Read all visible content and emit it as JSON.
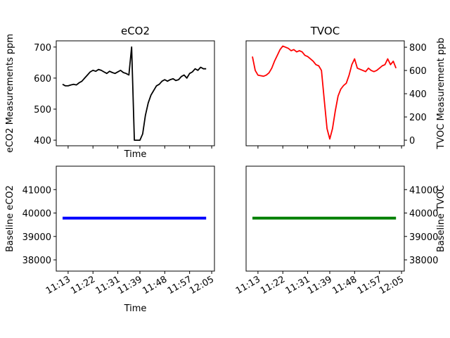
{
  "chart_data": [
    {
      "type": "line",
      "title": "eCO2",
      "x_label": "Time",
      "y_label": "eCO2 Measurements ppm",
      "y_axis_side": "left",
      "xlim": [
        668.7,
        726
      ],
      "xticks": [
        673,
        682,
        691,
        699,
        708,
        717,
        725
      ],
      "ylim": [
        382,
        720
      ],
      "yticks": [
        400,
        500,
        600,
        700
      ],
      "series": [
        {
          "color": "#000000",
          "x": [
            671,
            672,
            673,
            674,
            675,
            676,
            677,
            678,
            679,
            680,
            681,
            682,
            683,
            684,
            685,
            686,
            687,
            688,
            689,
            690,
            691,
            692,
            693,
            694,
            695,
            696,
            697,
            698,
            699,
            700,
            701,
            702,
            703,
            704,
            705,
            706,
            707,
            708,
            709,
            710,
            711,
            712,
            713,
            714,
            715,
            716,
            717,
            718,
            719,
            720,
            721,
            722,
            723
          ],
          "values": [
            580,
            575,
            575,
            578,
            580,
            578,
            585,
            590,
            600,
            610,
            620,
            625,
            622,
            628,
            625,
            620,
            615,
            622,
            618,
            615,
            620,
            625,
            618,
            615,
            610,
            700,
            400,
            400,
            400,
            420,
            480,
            520,
            545,
            560,
            575,
            580,
            590,
            595,
            590,
            595,
            598,
            592,
            595,
            605,
            610,
            600,
            615,
            620,
            630,
            625,
            635,
            630,
            630
          ]
        }
      ]
    },
    {
      "type": "line",
      "title": "TVOC",
      "y_label": "TVOC Measurement ppb",
      "y_axis_side": "right",
      "xlim": [
        668.7,
        726
      ],
      "xticks": [
        673,
        682,
        691,
        699,
        708,
        717,
        725
      ],
      "ylim": [
        -48,
        855
      ],
      "yticks": [
        0,
        200,
        400,
        600,
        800
      ],
      "series": [
        {
          "color": "#ff0000",
          "x": [
            671,
            672,
            673,
            674,
            675,
            676,
            677,
            678,
            679,
            680,
            681,
            682,
            683,
            684,
            685,
            686,
            687,
            688,
            689,
            690,
            691,
            692,
            693,
            694,
            695,
            696,
            697,
            698,
            699,
            700,
            701,
            702,
            703,
            704,
            705,
            706,
            707,
            708,
            709,
            710,
            711,
            712,
            713,
            714,
            715,
            716,
            717,
            718,
            719,
            720,
            721,
            722,
            723
          ],
          "values": [
            720,
            600,
            560,
            555,
            550,
            560,
            580,
            620,
            680,
            730,
            780,
            810,
            800,
            790,
            770,
            780,
            760,
            770,
            760,
            730,
            720,
            700,
            680,
            650,
            640,
            600,
            350,
            100,
            10,
            100,
            250,
            380,
            440,
            470,
            490,
            560,
            650,
            700,
            620,
            610,
            600,
            590,
            620,
            600,
            590,
            600,
            620,
            640,
            650,
            700,
            650,
            680,
            620
          ]
        }
      ]
    },
    {
      "type": "line",
      "x_label": "Time",
      "y_label": "Baseline eCO2",
      "y_axis_side": "left",
      "xlim": [
        668.7,
        726
      ],
      "xticks": [
        {
          "value": 673,
          "label": "11:13"
        },
        {
          "value": 682,
          "label": "11:22"
        },
        {
          "value": 691,
          "label": "11:31"
        },
        {
          "value": 699,
          "label": "11:39"
        },
        {
          "value": 708,
          "label": "11:48"
        },
        {
          "value": 717,
          "label": "11:57"
        },
        {
          "value": 725,
          "label": "12:05"
        }
      ],
      "ylim": [
        37520,
        42000
      ],
      "yticks": [
        38000,
        39000,
        40000,
        41000
      ],
      "series": [
        {
          "color": "#0000ff",
          "x": [
            671,
            723
          ],
          "values": [
            39780,
            39780
          ]
        }
      ]
    },
    {
      "type": "line",
      "y_label": "Baseline TVOC",
      "y_axis_side": "right",
      "xlim": [
        668.7,
        726
      ],
      "xticks": [
        {
          "value": 673,
          "label": "11:13"
        },
        {
          "value": 682,
          "label": "11:22"
        },
        {
          "value": 691,
          "label": "11:31"
        },
        {
          "value": 699,
          "label": "11:39"
        },
        {
          "value": 708,
          "label": "11:48"
        },
        {
          "value": 717,
          "label": "11:57"
        },
        {
          "value": 725,
          "label": "12:05"
        }
      ],
      "ylim": [
        37520,
        42000
      ],
      "yticks": [
        38000,
        39000,
        40000,
        41000
      ],
      "series": [
        {
          "color": "#008000",
          "x": [
            671,
            723
          ],
          "values": [
            39780,
            39780
          ]
        }
      ]
    }
  ]
}
